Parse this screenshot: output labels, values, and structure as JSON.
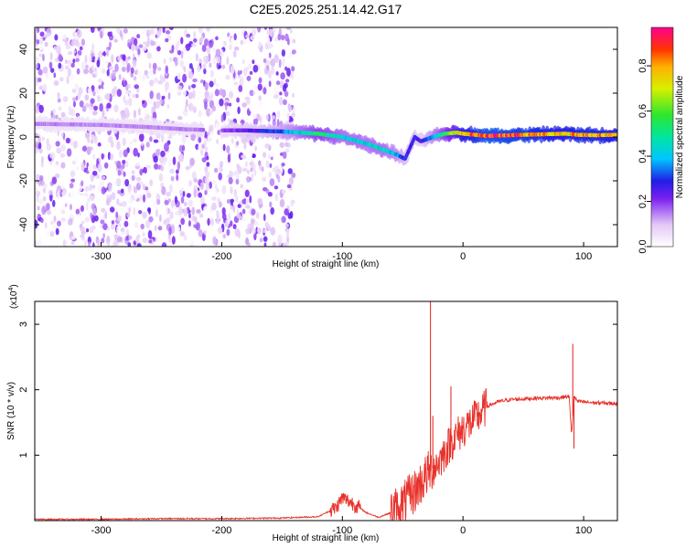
{
  "title": "C2E5.2025.251.14.42.G17",
  "chart_data": [
    {
      "type": "heatmap",
      "xlabel": "Height of straight line (km)",
      "ylabel": "Frequency (Hz)",
      "xlim": [
        -355,
        128
      ],
      "ylim": [
        -50,
        50
      ],
      "xticks": [
        -300,
        -200,
        -100,
        0,
        100
      ],
      "yticks": [
        -40,
        -20,
        0,
        20,
        40
      ],
      "colorbar": {
        "label": "Normalized spectral amplitude",
        "range": [
          0,
          0.97
        ],
        "ticks": [
          0.0,
          0.2,
          0.4,
          0.6,
          0.8
        ]
      },
      "noise_region": {
        "x_range": [
          -355,
          -140
        ],
        "y_range": [
          -50,
          50
        ]
      },
      "ridge": {
        "x": [
          -355,
          -300,
          -260,
          -230,
          -200,
          -180,
          -150,
          -120,
          -100,
          -80,
          -65,
          -55,
          -48,
          -40,
          -35,
          -25,
          -15,
          -5,
          0,
          20,
          50,
          85,
          95,
          110,
          128
        ],
        "freq": [
          6,
          5.5,
          4.5,
          3.5,
          3,
          3,
          2.5,
          1.5,
          0,
          -3,
          -6,
          -8,
          -10,
          0,
          -2,
          0,
          1.5,
          2,
          1.5,
          0.5,
          1,
          1.5,
          1,
          0.8,
          1
        ],
        "amplitude": [
          0.15,
          0.15,
          0.15,
          0.15,
          0.18,
          0.25,
          0.35,
          0.55,
          0.45,
          0.45,
          0.45,
          0.4,
          0.3,
          0.3,
          0.25,
          0.4,
          0.55,
          0.7,
          0.8,
          0.92,
          0.88,
          0.8,
          0.85,
          0.85,
          0.8
        ]
      }
    },
    {
      "type": "line",
      "xlabel": "Height of straight line (km)",
      "ylabel": "SNR (10 * v/v)",
      "scale_label": "(x10",
      "scale_exponent": "4",
      "xlim": [
        -355,
        128
      ],
      "ylim": [
        0,
        3.35
      ],
      "xticks": [
        -300,
        -200,
        -100,
        0,
        100
      ],
      "yticks": [
        1,
        2,
        3
      ],
      "color": "#e8312a",
      "series": [
        {
          "x": [
            -355,
            -300,
            -250,
            -200,
            -150,
            -120,
            -105,
            -100,
            -95,
            -90,
            -80,
            -70,
            -60,
            -50,
            -40,
            -30,
            -20,
            -10,
            0,
            10,
            20,
            30,
            40,
            60,
            80,
            88,
            90,
            92,
            95,
            110,
            128
          ],
          "y": [
            0.02,
            0.02,
            0.03,
            0.03,
            0.04,
            0.06,
            0.2,
            0.35,
            0.3,
            0.25,
            0.12,
            0.05,
            0.12,
            0.25,
            0.45,
            0.7,
            0.9,
            1.2,
            1.4,
            1.55,
            1.75,
            1.82,
            1.85,
            1.87,
            1.88,
            1.9,
            1.3,
            1.9,
            1.82,
            1.8,
            1.79
          ]
        }
      ],
      "spikes": [
        {
          "x": -27,
          "y": 3.35
        },
        {
          "x": -25,
          "y": 1.6
        },
        {
          "x": -10,
          "y": 2.05
        },
        {
          "x": 12,
          "y": 1.65
        },
        {
          "x": 91,
          "y": 2.7
        },
        {
          "x": 92,
          "y": 1.1
        }
      ]
    }
  ]
}
